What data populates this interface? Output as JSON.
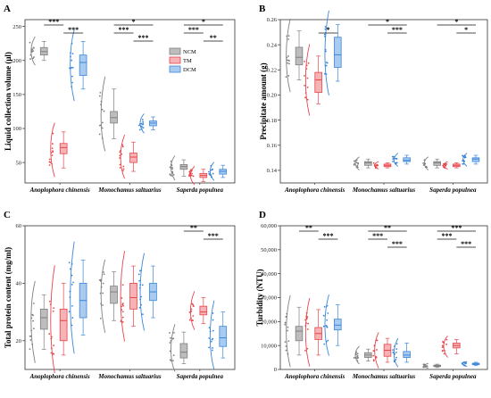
{
  "legend": [
    {
      "name": "NCM",
      "color": "#7f7f7f",
      "fill": "#bdbdbd"
    },
    {
      "name": "TM",
      "color": "#e8454a",
      "fill": "#f6b2b4"
    },
    {
      "name": "DCM",
      "color": "#3b86d8",
      "fill": "#a9cbf0"
    }
  ],
  "categories": [
    "Anoplophora chinensis",
    "Monochamus saltuarius",
    "Saperda populnea"
  ],
  "chart_data": [
    {
      "panel": "A",
      "type": "box",
      "ylabel": "Liquid collection volume (μl)",
      "ylim": [
        20,
        260
      ],
      "yticks": [
        50,
        100,
        150,
        200,
        250
      ],
      "boxes": [
        [
          [
            200,
            208,
            213,
            219,
            228
          ],
          [
            42,
            63,
            72,
            78,
            95
          ],
          [
            158,
            178,
            197,
            208,
            228
          ]
        ],
        [
          [
            85,
            108,
            116,
            125,
            158
          ],
          [
            37,
            50,
            58,
            64,
            80
          ],
          [
            98,
            104,
            108,
            111,
            117
          ]
        ],
        [
          [
            30,
            40,
            44,
            47,
            54
          ],
          [
            22,
            28,
            31,
            34,
            40
          ],
          [
            28,
            33,
            37,
            40,
            46
          ]
        ]
      ],
      "sig": [
        {
          "cat": 0,
          "from": 0,
          "to": 1,
          "label": "***",
          "level": 0
        },
        {
          "cat": 0,
          "from": 1,
          "to": 2,
          "label": "***",
          "level": 1
        },
        {
          "cat": 1,
          "from": 0,
          "to": 1,
          "label": "***",
          "level": 1
        },
        {
          "cat": 1,
          "from": 0,
          "to": 2,
          "label": "*",
          "level": 0
        },
        {
          "cat": 1,
          "from": 1,
          "to": 2,
          "label": "***",
          "level": 2
        },
        {
          "cat": 2,
          "from": 0,
          "to": 1,
          "label": "***",
          "level": 1
        },
        {
          "cat": 2,
          "from": 0,
          "to": 2,
          "label": "*",
          "level": 0
        },
        {
          "cat": 2,
          "from": 1,
          "to": 2,
          "label": "**",
          "level": 2
        }
      ]
    },
    {
      "panel": "B",
      "type": "box",
      "ylabel": "Precipitate amount (g)",
      "ylim": [
        0.13,
        0.26
      ],
      "yticks": [
        0.14,
        0.16,
        0.18,
        0.2,
        0.22,
        0.24,
        0.26
      ],
      "yfmt": 2,
      "boxes": [
        [
          [
            0.212,
            0.224,
            0.23,
            0.238,
            0.251
          ],
          [
            0.193,
            0.202,
            0.212,
            0.218,
            0.231
          ],
          [
            0.211,
            0.222,
            0.232,
            0.246,
            0.256
          ]
        ],
        [
          [
            0.142,
            0.144,
            0.146,
            0.147,
            0.149
          ],
          [
            0.142,
            0.143,
            0.144,
            0.145,
            0.146
          ],
          [
            0.145,
            0.147,
            0.148,
            0.15,
            0.152
          ]
        ],
        [
          [
            0.142,
            0.144,
            0.146,
            0.147,
            0.149
          ],
          [
            0.142,
            0.143,
            0.144,
            0.145,
            0.146
          ],
          [
            0.145,
            0.147,
            0.149,
            0.15,
            0.152
          ]
        ]
      ],
      "sig": [
        {
          "cat": 0,
          "from": 1,
          "to": 2,
          "label": "*",
          "level": 1
        },
        {
          "cat": 1,
          "from": 0,
          "to": 2,
          "label": "*",
          "level": 0
        },
        {
          "cat": 1,
          "from": 1,
          "to": 2,
          "label": "***",
          "level": 1
        },
        {
          "cat": 2,
          "from": 0,
          "to": 2,
          "label": "*",
          "level": 0
        },
        {
          "cat": 2,
          "from": 1,
          "to": 2,
          "label": "*",
          "level": 1
        }
      ]
    },
    {
      "panel": "C",
      "type": "box",
      "ylabel": "Total protein content (mg/ml)",
      "ylim": [
        10,
        60
      ],
      "yticks": [
        20,
        40,
        60
      ],
      "boxes": [
        [
          [
            17,
            24,
            28,
            31,
            36
          ],
          [
            15,
            20,
            27,
            31,
            40
          ],
          [
            22,
            28,
            34,
            40,
            48
          ]
        ],
        [
          [
            27,
            33,
            37,
            39,
            44
          ],
          [
            25,
            31,
            35,
            40,
            46
          ],
          [
            28,
            34,
            37,
            40,
            46
          ]
        ],
        [
          [
            12,
            14,
            16,
            19,
            23
          ],
          [
            26,
            29,
            30,
            32,
            35
          ],
          [
            14,
            18,
            21,
            25,
            30
          ]
        ]
      ],
      "sig": [
        {
          "cat": 2,
          "from": 0,
          "to": 1,
          "label": "**",
          "level": 0
        },
        {
          "cat": 2,
          "from": 1,
          "to": 2,
          "label": "***",
          "level": 1
        }
      ]
    },
    {
      "panel": "D",
      "type": "box",
      "ylabel": "Turbidity (NTU)",
      "ylim": [
        0,
        60000
      ],
      "yticks": [
        0,
        10000,
        20000,
        30000,
        40000,
        50000,
        60000
      ],
      "ysep": true,
      "boxes": [
        [
          [
            6000,
            12000,
            16000,
            18000,
            26000
          ],
          [
            6000,
            12500,
            15000,
            17500,
            25000
          ],
          [
            10000,
            16500,
            18500,
            21000,
            27000
          ]
        ],
        [
          [
            3500,
            5000,
            6000,
            7000,
            8500
          ],
          [
            3000,
            5500,
            8000,
            10500,
            13000
          ],
          [
            3000,
            5000,
            6000,
            7500,
            11000
          ]
        ],
        [
          [
            800,
            1200,
            1500,
            1800,
            2200
          ],
          [
            6500,
            9000,
            10000,
            11000,
            12500
          ],
          [
            1600,
            2000,
            2300,
            2600,
            3000
          ]
        ]
      ],
      "sig": [
        {
          "cat": 0,
          "from": 0,
          "to": 1,
          "label": "**",
          "level": 0
        },
        {
          "cat": 0,
          "from": 1,
          "to": 2,
          "label": "***",
          "level": 1
        },
        {
          "cat": 1,
          "from": 0,
          "to": 1,
          "label": "***",
          "level": 1
        },
        {
          "cat": 1,
          "from": 0,
          "to": 2,
          "label": "**",
          "level": 0
        },
        {
          "cat": 1,
          "from": 1,
          "to": 2,
          "label": "***",
          "level": 2
        },
        {
          "cat": 2,
          "from": 0,
          "to": 1,
          "label": "***",
          "level": 1
        },
        {
          "cat": 2,
          "from": 0,
          "to": 2,
          "label": "***",
          "level": 0
        },
        {
          "cat": 2,
          "from": 1,
          "to": 2,
          "label": "***",
          "level": 2
        }
      ]
    }
  ]
}
